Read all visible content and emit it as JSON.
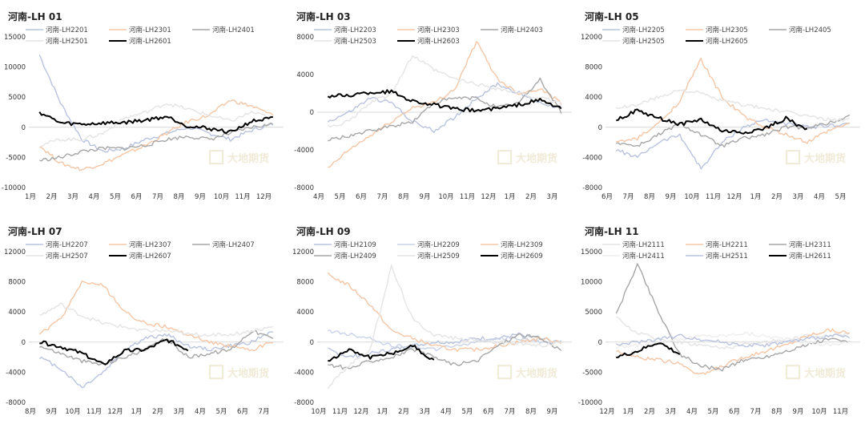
{
  "chart_data": [
    {
      "type": "line",
      "title": "河南-LH 01",
      "categories": [
        "1月",
        "2月",
        "3月",
        "4月",
        "5月",
        "6月",
        "7月",
        "8月",
        "9月",
        "10月",
        "11月",
        "12月"
      ],
      "yticks": [
        15000,
        10000,
        5000,
        0,
        -5000,
        -10000
      ],
      "ylim": [
        -10000,
        15000
      ],
      "watermark": "大地期货",
      "series": [
        {
          "name": "河南-LH2201",
          "color": "#b8c3e0",
          "values": [
            12000,
            4000,
            -2000,
            -4000,
            -3500,
            -2000,
            -1000,
            0,
            -1000,
            -2000,
            -500,
            500
          ]
        },
        {
          "name": "河南-LH2301",
          "color": "#f5c6a5",
          "values": [
            -3000,
            -6000,
            -7000,
            -6000,
            -4500,
            -3000,
            -1000,
            1000,
            2000,
            4500,
            3500,
            2000
          ]
        },
        {
          "name": "河南-LH2401",
          "color": "#a6a6a6",
          "values": [
            -5500,
            -5000,
            -4000,
            -3500,
            -3500,
            -3000,
            -2000,
            -1500,
            -2000,
            -1000,
            0,
            500
          ]
        },
        {
          "name": "河南-LH2501",
          "color": "#e4e4e4",
          "values": [
            -3000,
            -2000,
            -2000,
            -1000,
            1500,
            2500,
            4000,
            3000,
            2000,
            1000,
            2500,
            1500
          ]
        },
        {
          "name": "河南-LH2601",
          "color": "#000000",
          "values": [
            2500,
            700,
            500,
            700,
            800,
            1200,
            1800,
            200,
            -200,
            -800,
            1000,
            1500
          ]
        }
      ]
    },
    {
      "type": "line",
      "title": "河南-LH 03",
      "categories": [
        "4月",
        "5月",
        "6月",
        "7月",
        "8月",
        "9月",
        "10月",
        "11月",
        "12月",
        "1月",
        "2月",
        "3月"
      ],
      "yticks": [
        8000,
        4000,
        0,
        -4000,
        -8000
      ],
      "ylim": [
        -8000,
        8000
      ],
      "watermark": "大地期货",
      "series": [
        {
          "name": "河南-LH2203",
          "color": "#b8c3e0",
          "values": [
            -1000,
            0,
            1500,
            1000,
            -1000,
            -2000,
            -500,
            1500,
            3000,
            2000,
            1000,
            500
          ]
        },
        {
          "name": "河南-LH2303",
          "color": "#f5c6a5",
          "values": [
            -6000,
            -4000,
            -2500,
            -1000,
            500,
            1000,
            2500,
            7500,
            3500,
            2000,
            2500,
            1000
          ]
        },
        {
          "name": "河南-LH2403",
          "color": "#a6a6a6",
          "values": [
            -3000,
            -2500,
            -2000,
            -1500,
            -1000,
            1000,
            1500,
            1500,
            500,
            1000,
            3500,
            0
          ]
        },
        {
          "name": "河南-LH2503",
          "color": "#e4e4e4",
          "values": [
            -1500,
            -1000,
            1000,
            2000,
            6000,
            4500,
            3500,
            3000,
            2500,
            2000,
            1500,
            1000
          ]
        },
        {
          "name": "河南-LH2603",
          "color": "#000000",
          "values": [
            1700,
            1800,
            2100,
            2200,
            1200,
            800,
            300,
            200,
            400,
            800,
            1300,
            400
          ]
        }
      ]
    },
    {
      "type": "line",
      "title": "河南-LH 05",
      "categories": [
        "6月",
        "7月",
        "8月",
        "9月",
        "10月",
        "11月",
        "12月",
        "1月",
        "2月",
        "3月",
        "4月",
        "5月"
      ],
      "yticks": [
        12000,
        8000,
        4000,
        0,
        -4000,
        -8000
      ],
      "ylim": [
        -8000,
        12000
      ],
      "watermark": "大地期货",
      "series": [
        {
          "name": "河南-LH2205",
          "color": "#b8c3e0",
          "values": [
            -3000,
            -4000,
            -2000,
            -1000,
            -5500,
            -2000,
            0,
            1000,
            500,
            0,
            200,
            500
          ]
        },
        {
          "name": "河南-LH2305",
          "color": "#f5c6a5",
          "values": [
            -2000,
            -1500,
            500,
            3500,
            9000,
            4000,
            1500,
            0,
            -1000,
            -2000,
            -500,
            500
          ]
        },
        {
          "name": "河南-LH2405",
          "color": "#a6a6a6",
          "values": [
            -2000,
            -2500,
            -1000,
            500,
            -1000,
            -2500,
            -1500,
            -1000,
            0,
            0,
            500,
            1500
          ]
        },
        {
          "name": "河南-LH2505",
          "color": "#e4e4e4",
          "values": [
            2500,
            3000,
            4000,
            5000,
            4500,
            3500,
            3000,
            2500,
            2000,
            1500,
            1000,
            1000
          ]
        },
        {
          "name": "河南-LH2605",
          "color": "#000000",
          "values": [
            1000,
            2200,
            1200,
            400,
            1000,
            -500,
            -700,
            -200,
            1200,
            -400,
            null,
            null
          ]
        }
      ]
    },
    {
      "type": "line",
      "title": "河南-LH 07",
      "categories": [
        "8月",
        "9月",
        "10月",
        "11月",
        "12月",
        "1月",
        "2月",
        "3月",
        "4月",
        "5月",
        "6月",
        "7月"
      ],
      "yticks": [
        12000,
        8000,
        4000,
        0,
        -4000,
        -8000
      ],
      "ylim": [
        -8000,
        12000
      ],
      "watermark": "大地期货",
      "series": [
        {
          "name": "河南-LH2207",
          "color": "#b8c3e0",
          "values": [
            -2000,
            -3500,
            -6000,
            -4000,
            -1000,
            500,
            1000,
            -500,
            -1000,
            -500,
            0,
            1500
          ]
        },
        {
          "name": "河南-LH2307",
          "color": "#f5c6a5",
          "values": [
            1000,
            3000,
            8000,
            7500,
            4000,
            2500,
            2000,
            1000,
            0,
            -500,
            -1000,
            0
          ]
        },
        {
          "name": "河南-LH2407",
          "color": "#a6a6a6",
          "values": [
            -500,
            -1500,
            -2500,
            -3000,
            -2000,
            -1000,
            500,
            -2000,
            -1500,
            -1000,
            1500,
            500
          ]
        },
        {
          "name": "河南-LH2507",
          "color": "#e4e4e4",
          "values": [
            3500,
            5000,
            3500,
            2500,
            2000,
            1500,
            1500,
            1000,
            1000,
            1000,
            1500,
            2000
          ]
        },
        {
          "name": "河南-LH2607",
          "color": "#000000",
          "values": [
            0,
            -600,
            -1500,
            -3000,
            -1200,
            -1000,
            300,
            -1000,
            null,
            null,
            null,
            null
          ]
        }
      ]
    },
    {
      "type": "line",
      "title": "河南-LH 09",
      "categories": [
        "10月",
        "11月",
        "12月",
        "1月",
        "2月",
        "3月",
        "4月",
        "5月",
        "6月",
        "7月",
        "8月",
        "9月"
      ],
      "yticks": [
        12000,
        8000,
        4000,
        0,
        -4000,
        -8000
      ],
      "ylim": [
        -8000,
        12000
      ],
      "watermark": "大地期货",
      "series": [
        {
          "name": "河南-LH2109",
          "color": "#b8c3e0",
          "values": [
            -1000,
            -2000,
            -1500,
            -1000,
            -500,
            0,
            0,
            500,
            500,
            1000,
            500,
            0
          ]
        },
        {
          "name": "河南-LH2209",
          "color": "#c9d3e8",
          "values": [
            1500,
            1000,
            500,
            -500,
            -500,
            -1000,
            -500,
            0,
            500,
            500,
            0,
            0
          ]
        },
        {
          "name": "河南-LH2309",
          "color": "#f5c6a5",
          "values": [
            9000,
            7500,
            5000,
            1500,
            500,
            -500,
            -1000,
            -1000,
            -500,
            0,
            500,
            0
          ]
        },
        {
          "name": "河南-LH2409",
          "color": "#a6a6a6",
          "values": [
            -3000,
            -3500,
            -2500,
            -2000,
            -1000,
            -2000,
            -3000,
            -2500,
            -500,
            1000,
            500,
            -1000
          ]
        },
        {
          "name": "河南-LH2509",
          "color": "#e4e4e4",
          "values": [
            -6000,
            -3000,
            -1000,
            10000,
            3000,
            1000,
            500,
            200,
            0,
            -200,
            -500,
            0
          ]
        },
        {
          "name": "河南-LH2609",
          "color": "#000000",
          "values": [
            -2500,
            -1000,
            -2000,
            -1500,
            -500,
            -2500,
            null,
            null,
            null,
            null,
            null,
            null
          ]
        }
      ]
    },
    {
      "type": "line",
      "title": "河南-LH 11",
      "categories": [
        "12月",
        "1月",
        "2月",
        "3月",
        "4月",
        "5月",
        "6月",
        "7月",
        "8月",
        "9月",
        "10月",
        "11月"
      ],
      "yticks": [
        15000,
        10000,
        5000,
        0,
        -5000,
        -10000
      ],
      "ylim": [
        -10000,
        15000
      ],
      "watermark": "大地期货",
      "series": [
        {
          "name": "河南-LH2111",
          "color": "#e4e4e4",
          "values": [
            4000,
            1500,
            500,
            0,
            -500,
            -1000,
            -500,
            0,
            500,
            1000,
            1000,
            1500
          ]
        },
        {
          "name": "河南-LH2211",
          "color": "#f5c6a5",
          "values": [
            -1500,
            -2500,
            -3000,
            -3500,
            -5500,
            -4000,
            -2500,
            -1500,
            -500,
            1000,
            2000,
            1500
          ]
        },
        {
          "name": "河南-LH2311",
          "color": "#a6a6a6",
          "values": [
            4500,
            13000,
            5000,
            -2000,
            -4000,
            -4500,
            -3000,
            -2500,
            -1500,
            -500,
            500,
            0
          ]
        },
        {
          "name": "河南-LH2411",
          "color": "#eeeeee",
          "values": [
            -1000,
            -500,
            0,
            500,
            1000,
            1000,
            1500,
            1000,
            500,
            0,
            -500,
            0
          ]
        },
        {
          "name": "河南-LH2511",
          "color": "#b8c3e0",
          "values": [
            -500,
            0,
            500,
            1000,
            500,
            0,
            -500,
            -500,
            0,
            500,
            1000,
            1000
          ]
        },
        {
          "name": "河南-LH2611",
          "color": "#000000",
          "values": [
            -2500,
            -1500,
            0,
            -2000,
            null,
            null,
            null,
            null,
            null,
            null,
            null,
            null
          ]
        }
      ]
    }
  ]
}
